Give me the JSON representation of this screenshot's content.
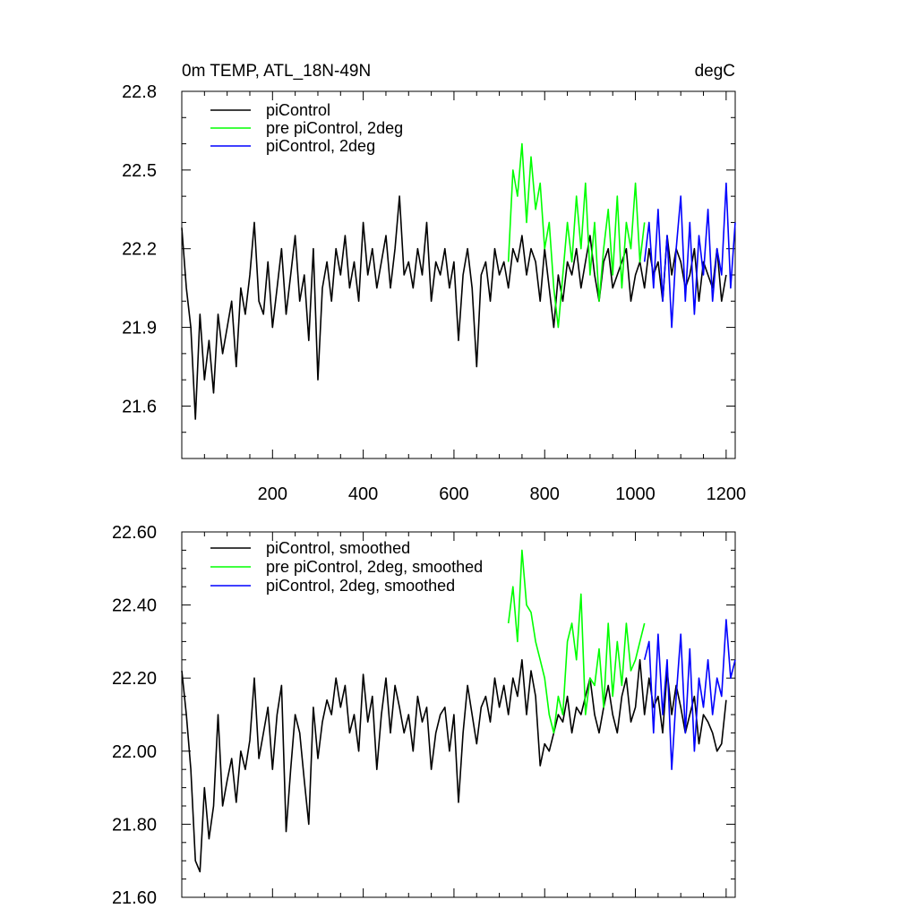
{
  "chart_data": [
    {
      "type": "line",
      "title": "0m TEMP, ATL_18N-49N",
      "units": "degC",
      "xlim": [
        0,
        1220
      ],
      "ylim": [
        21.4,
        22.8
      ],
      "x_ticks": [
        200,
        400,
        600,
        800,
        1000,
        1200
      ],
      "y_ticks": [
        21.6,
        21.9,
        22.2,
        22.5,
        22.8
      ],
      "y_tick_labels": [
        "21.6",
        "21.9",
        "22.2",
        "22.5",
        "22.8"
      ],
      "legend_position": "top-left",
      "series": [
        {
          "name": "piControl",
          "color": "#000000",
          "x": [
            0,
            10,
            20,
            30,
            40,
            50,
            60,
            70,
            80,
            90,
            100,
            110,
            120,
            130,
            140,
            150,
            160,
            170,
            180,
            190,
            200,
            210,
            220,
            230,
            240,
            250,
            260,
            270,
            280,
            290,
            300,
            310,
            320,
            330,
            340,
            350,
            360,
            370,
            380,
            390,
            400,
            410,
            420,
            430,
            440,
            450,
            460,
            470,
            480,
            490,
            500,
            510,
            520,
            530,
            540,
            550,
            560,
            570,
            580,
            590,
            600,
            610,
            620,
            630,
            640,
            650,
            660,
            670,
            680,
            690,
            700,
            710,
            720,
            730,
            740,
            750,
            760,
            770,
            780,
            790,
            800,
            810,
            820,
            830,
            840,
            850,
            860,
            870,
            880,
            890,
            900,
            910,
            920,
            930,
            940,
            950,
            960,
            970,
            980,
            990,
            1000,
            1010,
            1020,
            1030,
            1040,
            1050,
            1060,
            1070,
            1080,
            1090,
            1100,
            1110,
            1120,
            1130,
            1140,
            1150,
            1160,
            1170,
            1180,
            1190,
            1200
          ],
          "values": [
            22.28,
            22.05,
            21.9,
            21.55,
            21.95,
            21.7,
            21.85,
            21.65,
            21.95,
            21.8,
            21.9,
            22.0,
            21.75,
            22.05,
            21.95,
            22.1,
            22.3,
            22.0,
            21.95,
            22.15,
            21.9,
            22.05,
            22.2,
            21.95,
            22.1,
            22.25,
            22.0,
            22.1,
            21.85,
            22.2,
            21.7,
            22.05,
            22.15,
            22.0,
            22.2,
            22.1,
            22.25,
            22.05,
            22.15,
            22.0,
            22.3,
            22.1,
            22.2,
            22.05,
            22.15,
            22.25,
            22.05,
            22.2,
            22.4,
            22.1,
            22.15,
            22.05,
            22.2,
            22.1,
            22.3,
            22.0,
            22.15,
            22.1,
            22.2,
            22.05,
            22.15,
            21.85,
            22.1,
            22.2,
            22.05,
            21.75,
            22.1,
            22.15,
            22.0,
            22.2,
            22.1,
            22.15,
            22.05,
            22.2,
            22.15,
            22.25,
            22.1,
            22.2,
            22.15,
            22.0,
            22.2,
            22.05,
            21.9,
            22.1,
            22.0,
            22.15,
            22.1,
            22.2,
            22.05,
            22.15,
            22.25,
            22.1,
            22.0,
            22.15,
            22.2,
            22.05,
            22.1,
            22.15,
            22.2,
            22.0,
            22.1,
            22.15,
            22.05,
            22.2,
            22.1,
            22.15,
            22.0,
            22.25,
            22.1,
            22.2,
            22.15,
            22.05,
            22.1,
            22.2,
            22.0,
            22.15,
            22.1,
            22.05,
            22.2,
            22.0,
            22.1
          ],
          "style": "solid"
        },
        {
          "name": "pre piControl, 2deg",
          "color": "#00ff00",
          "x": [
            720,
            730,
            740,
            750,
            760,
            770,
            780,
            790,
            800,
            810,
            820,
            830,
            840,
            850,
            860,
            870,
            880,
            890,
            900,
            910,
            920,
            930,
            940,
            950,
            960,
            970,
            980,
            990,
            1000,
            1010,
            1020
          ],
          "values": [
            22.15,
            22.5,
            22.4,
            22.6,
            22.3,
            22.55,
            22.35,
            22.45,
            22.2,
            22.3,
            22.05,
            21.9,
            22.1,
            22.3,
            22.15,
            22.4,
            22.2,
            22.45,
            22.1,
            22.3,
            22.0,
            22.2,
            22.35,
            22.1,
            22.4,
            22.05,
            22.3,
            22.2,
            22.45,
            22.15,
            22.3
          ],
          "style": "solid"
        },
        {
          "name": "piControl, 2deg",
          "color": "#0000ff",
          "x": [
            1020,
            1030,
            1040,
            1050,
            1060,
            1070,
            1080,
            1090,
            1100,
            1110,
            1120,
            1130,
            1140,
            1150,
            1160,
            1170,
            1180,
            1190,
            1200,
            1210,
            1220
          ],
          "values": [
            22.15,
            22.3,
            22.05,
            22.35,
            22.0,
            22.25,
            21.9,
            22.2,
            22.4,
            22.0,
            22.3,
            21.95,
            22.25,
            22.1,
            22.35,
            22.0,
            22.2,
            22.1,
            22.45,
            22.05,
            22.3
          ],
          "style": "solid"
        }
      ]
    },
    {
      "type": "line",
      "title": "",
      "xlim": [
        0,
        1220
      ],
      "ylim": [
        21.6,
        22.6
      ],
      "x_ticks": [
        200,
        400,
        600,
        800,
        1000,
        1200
      ],
      "y_ticks": [
        21.6,
        21.8,
        22.0,
        22.2,
        22.4,
        22.6
      ],
      "y_tick_labels": [
        "21.60",
        "21.80",
        "22.00",
        "22.20",
        "22.40",
        "22.60"
      ],
      "legend_position": "top-left",
      "series": [
        {
          "name": "piControl, smoothed",
          "color": "#000000",
          "x": [
            0,
            10,
            20,
            30,
            40,
            50,
            60,
            70,
            80,
            90,
            100,
            110,
            120,
            130,
            140,
            150,
            160,
            170,
            180,
            190,
            200,
            210,
            220,
            230,
            240,
            250,
            260,
            270,
            280,
            290,
            300,
            310,
            320,
            330,
            340,
            350,
            360,
            370,
            380,
            390,
            400,
            410,
            420,
            430,
            440,
            450,
            460,
            470,
            480,
            490,
            500,
            510,
            520,
            530,
            540,
            550,
            560,
            570,
            580,
            590,
            600,
            610,
            620,
            630,
            640,
            650,
            660,
            670,
            680,
            690,
            700,
            710,
            720,
            730,
            740,
            750,
            760,
            770,
            780,
            790,
            800,
            810,
            820,
            830,
            840,
            850,
            860,
            870,
            880,
            890,
            900,
            910,
            920,
            930,
            940,
            950,
            960,
            970,
            980,
            990,
            1000,
            1010,
            1020,
            1030,
            1040,
            1050,
            1060,
            1070,
            1080,
            1090,
            1100,
            1110,
            1120,
            1130,
            1140,
            1150,
            1160,
            1170,
            1180,
            1190,
            1200
          ],
          "values": [
            22.22,
            22.1,
            21.95,
            21.7,
            21.67,
            21.9,
            21.76,
            21.85,
            22.1,
            21.85,
            21.92,
            21.98,
            21.86,
            22.0,
            21.95,
            22.03,
            22.2,
            21.98,
            22.05,
            22.12,
            21.95,
            22.1,
            22.18,
            21.78,
            21.95,
            22.1,
            22.05,
            21.92,
            21.8,
            22.12,
            21.98,
            22.08,
            22.14,
            22.1,
            22.2,
            22.12,
            22.18,
            22.05,
            22.1,
            22.0,
            22.21,
            22.08,
            22.15,
            21.95,
            22.1,
            22.2,
            22.05,
            22.18,
            22.12,
            22.05,
            22.1,
            22.0,
            22.15,
            22.08,
            22.12,
            21.95,
            22.05,
            22.1,
            22.12,
            22.0,
            22.1,
            21.86,
            22.05,
            22.18,
            22.1,
            22.02,
            22.12,
            22.15,
            22.08,
            22.2,
            22.12,
            22.18,
            22.1,
            22.2,
            22.15,
            22.25,
            22.1,
            22.22,
            22.15,
            21.96,
            22.02,
            22.0,
            22.05,
            22.1,
            22.08,
            22.15,
            22.05,
            22.12,
            22.1,
            22.15,
            22.2,
            22.1,
            22.05,
            22.12,
            22.18,
            22.1,
            22.05,
            22.15,
            22.2,
            22.08,
            22.12,
            22.25,
            22.1,
            22.2,
            22.12,
            22.15,
            22.05,
            22.22,
            22.1,
            22.18,
            22.12,
            22.05,
            22.1,
            22.15,
            22.02,
            22.1,
            22.08,
            22.05,
            22.0,
            22.02,
            22.14
          ],
          "style": "solid"
        },
        {
          "name": "pre piControl, 2deg, smoothed",
          "color": "#00ff00",
          "x": [
            720,
            730,
            740,
            750,
            760,
            770,
            780,
            790,
            800,
            810,
            820,
            830,
            840,
            850,
            860,
            870,
            880,
            890,
            900,
            910,
            920,
            930,
            940,
            950,
            960,
            970,
            980,
            990,
            1000,
            1010,
            1020
          ],
          "values": [
            22.35,
            22.45,
            22.3,
            22.55,
            22.4,
            22.38,
            22.3,
            22.25,
            22.2,
            22.1,
            22.05,
            22.15,
            22.1,
            22.3,
            22.35,
            22.25,
            22.43,
            22.1,
            22.2,
            22.18,
            22.28,
            22.12,
            22.35,
            22.15,
            22.3,
            22.18,
            22.35,
            22.22,
            22.25,
            22.3,
            22.35
          ],
          "style": "solid"
        },
        {
          "name": "piControl, 2deg, smoothed",
          "color": "#0000ff",
          "x": [
            1020,
            1030,
            1040,
            1050,
            1060,
            1070,
            1080,
            1090,
            1100,
            1110,
            1120,
            1130,
            1140,
            1150,
            1160,
            1170,
            1180,
            1190,
            1200,
            1210,
            1220
          ],
          "values": [
            22.25,
            22.3,
            22.05,
            22.32,
            22.1,
            22.25,
            21.95,
            22.15,
            22.32,
            22.05,
            22.28,
            22.0,
            22.2,
            22.12,
            22.25,
            22.1,
            22.2,
            22.15,
            22.36,
            22.2,
            22.25
          ],
          "style": "solid"
        }
      ]
    }
  ]
}
